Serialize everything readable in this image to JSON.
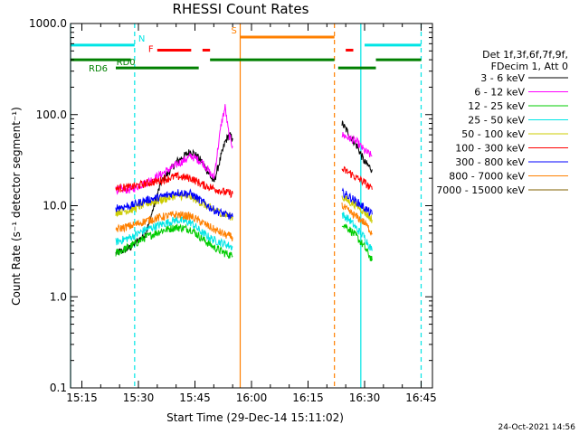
{
  "chart_data": {
    "type": "line",
    "title": "RHESSI Count Rates",
    "xlabel": "Start Time (29-Dec-14 15:11:02)",
    "ylabel": "Count Rate (s⁻¹ detector segment⁻¹)",
    "y_scale": "log",
    "ylim": [
      0.1,
      1000.0
    ],
    "xlim": [
      "15:12",
      "16:48"
    ],
    "x_ticks": [
      "15:15",
      "15:30",
      "15:45",
      "16:00",
      "16:15",
      "16:30",
      "16:45"
    ],
    "y_ticks": [
      "0.1",
      "1.0",
      "10.0",
      "100.0",
      "1000.0"
    ],
    "legend_header": [
      "Det 1f,3f,6f,7f,9f,",
      "FDecim 1, Att 0"
    ],
    "legend_position": "right",
    "series": [
      {
        "name": "3 - 6 keV",
        "color": "#000000",
        "x": [
          "15:24",
          "15:28",
          "15:32",
          "15:36",
          "15:40",
          "15:44",
          "15:47",
          "15:50",
          "15:53",
          "15:54",
          "15:55",
          "16:24",
          "16:26",
          "16:28",
          "16:30",
          "16:32"
        ],
        "y": [
          3.0,
          3.5,
          5.0,
          18,
          30,
          40,
          30,
          18,
          50,
          60,
          55,
          80,
          60,
          45,
          30,
          25
        ]
      },
      {
        "name": "6 - 12 keV",
        "color": "#ff00ff",
        "x": [
          "15:24",
          "15:28",
          "15:32",
          "15:36",
          "15:40",
          "15:44",
          "15:47",
          "15:50",
          "15:52",
          "15:53",
          "15:54",
          "15:55",
          "16:24",
          "16:26",
          "16:28",
          "16:30",
          "16:32"
        ],
        "y": [
          15,
          15,
          18,
          22,
          28,
          35,
          30,
          20,
          80,
          120,
          60,
          45,
          60,
          55,
          50,
          40,
          35
        ]
      },
      {
        "name": "12 - 25 keV",
        "color": "#00cc00",
        "x": [
          "15:24",
          "15:28",
          "15:32",
          "15:36",
          "15:40",
          "15:44",
          "15:47",
          "15:50",
          "15:53",
          "15:55",
          "16:24",
          "16:26",
          "16:28",
          "16:30",
          "16:32"
        ],
        "y": [
          3.0,
          3.6,
          4.5,
          5.3,
          5.8,
          5.5,
          4.3,
          3.5,
          3.0,
          2.8,
          6.5,
          5.5,
          4.5,
          3.5,
          2.5
        ]
      },
      {
        "name": "25 - 50 keV",
        "color": "#00e5e5",
        "x": [
          "15:24",
          "15:28",
          "15:32",
          "15:36",
          "15:40",
          "15:44",
          "15:47",
          "15:50",
          "15:53",
          "15:55",
          "16:24",
          "16:26",
          "16:28",
          "16:30",
          "16:32"
        ],
        "y": [
          4.0,
          4.5,
          5.5,
          6.2,
          7.0,
          6.5,
          5.0,
          4.2,
          3.8,
          3.5,
          8.0,
          7.0,
          5.5,
          4.5,
          3.2
        ]
      },
      {
        "name": "50 - 100 keV",
        "color": "#cccc00",
        "x": [
          "15:24",
          "15:28",
          "15:32",
          "15:36",
          "15:40",
          "15:44",
          "15:47",
          "15:50",
          "15:53",
          "15:55",
          "16:24",
          "16:26",
          "16:28",
          "16:30",
          "16:32"
        ],
        "y": [
          8.5,
          9.0,
          10.5,
          11.5,
          13.0,
          12.5,
          10.5,
          9.0,
          8.0,
          7.5,
          12.5,
          11.0,
          10.0,
          8.5,
          7.0
        ]
      },
      {
        "name": "100 - 300 keV",
        "color": "#ff0000",
        "x": [
          "15:24",
          "15:28",
          "15:32",
          "15:36",
          "15:40",
          "15:44",
          "15:47",
          "15:50",
          "15:53",
          "15:55",
          "16:24",
          "16:26",
          "16:28",
          "16:30",
          "16:32"
        ],
        "y": [
          15.5,
          16.0,
          17.5,
          19.0,
          21.0,
          20.0,
          17.0,
          15.5,
          14.0,
          13.5,
          25.0,
          23.0,
          20.0,
          18.0,
          15.0
        ]
      },
      {
        "name": "300 - 800 keV",
        "color": "#0000ff",
        "x": [
          "15:24",
          "15:28",
          "15:32",
          "15:36",
          "15:40",
          "15:44",
          "15:47",
          "15:50",
          "15:53",
          "15:55",
          "16:24",
          "16:26",
          "16:28",
          "16:30",
          "16:32"
        ],
        "y": [
          9.5,
          10.0,
          11.5,
          12.5,
          14.0,
          13.5,
          11.0,
          9.0,
          8.0,
          7.5,
          14.0,
          12.5,
          11.0,
          9.5,
          8.0
        ]
      },
      {
        "name": "800 - 7000 keV",
        "color": "#ff8000",
        "x": [
          "15:24",
          "15:28",
          "15:32",
          "15:36",
          "15:40",
          "15:44",
          "15:47",
          "15:50",
          "15:53",
          "15:55",
          "16:24",
          "16:26",
          "16:28",
          "16:30",
          "16:32"
        ],
        "y": [
          5.5,
          6.0,
          6.8,
          7.5,
          8.0,
          7.6,
          6.5,
          5.5,
          4.8,
          4.5,
          10.0,
          8.5,
          7.5,
          6.5,
          5.0
        ]
      },
      {
        "name": "7000 - 15000 keV",
        "color": "#806000",
        "x": [],
        "y": []
      }
    ],
    "annotations": {
      "horizontal_segments": [
        {
          "label": "N",
          "color": "#00e5e5",
          "level": 580,
          "segments": [
            [
              "15:12",
              "15:29"
            ],
            [
              "16:30",
              "16:45"
            ]
          ]
        },
        {
          "label": "F",
          "color": "#ff0000",
          "level": 510,
          "segments": [
            [
              "15:35",
              "15:44"
            ],
            [
              "15:47",
              "15:49"
            ],
            [
              "16:25",
              "16:27"
            ]
          ]
        },
        {
          "label": "S",
          "color": "#ff8000",
          "level": 710,
          "segments": [
            [
              "15:57",
              "16:22"
            ]
          ]
        },
        {
          "label": "RD0",
          "color": "#008000",
          "level": 400,
          "segments": [
            [
              "15:12",
              "15:28"
            ],
            [
              "15:49",
              "16:22"
            ],
            [
              "16:33",
              "16:45"
            ]
          ]
        },
        {
          "label": "RD6",
          "color": "#008000",
          "level": 325,
          "segments": [
            [
              "15:24",
              "15:46"
            ],
            [
              "16:23",
              "16:33"
            ]
          ]
        }
      ],
      "vertical_lines": [
        {
          "x": "15:12",
          "color": "#00e5e5",
          "style": "solid"
        },
        {
          "x": "15:29",
          "color": "#00e5e5",
          "style": "dashed"
        },
        {
          "x": "16:29",
          "color": "#00e5e5",
          "style": "solid"
        },
        {
          "x": "16:45",
          "color": "#00e5e5",
          "style": "dashed"
        },
        {
          "x": "15:57",
          "color": "#ff8000",
          "style": "solid"
        },
        {
          "x": "16:22",
          "color": "#ff8000",
          "style": "dashed"
        }
      ]
    }
  },
  "footer_timestamp": "24-Oct-2021 14:56"
}
